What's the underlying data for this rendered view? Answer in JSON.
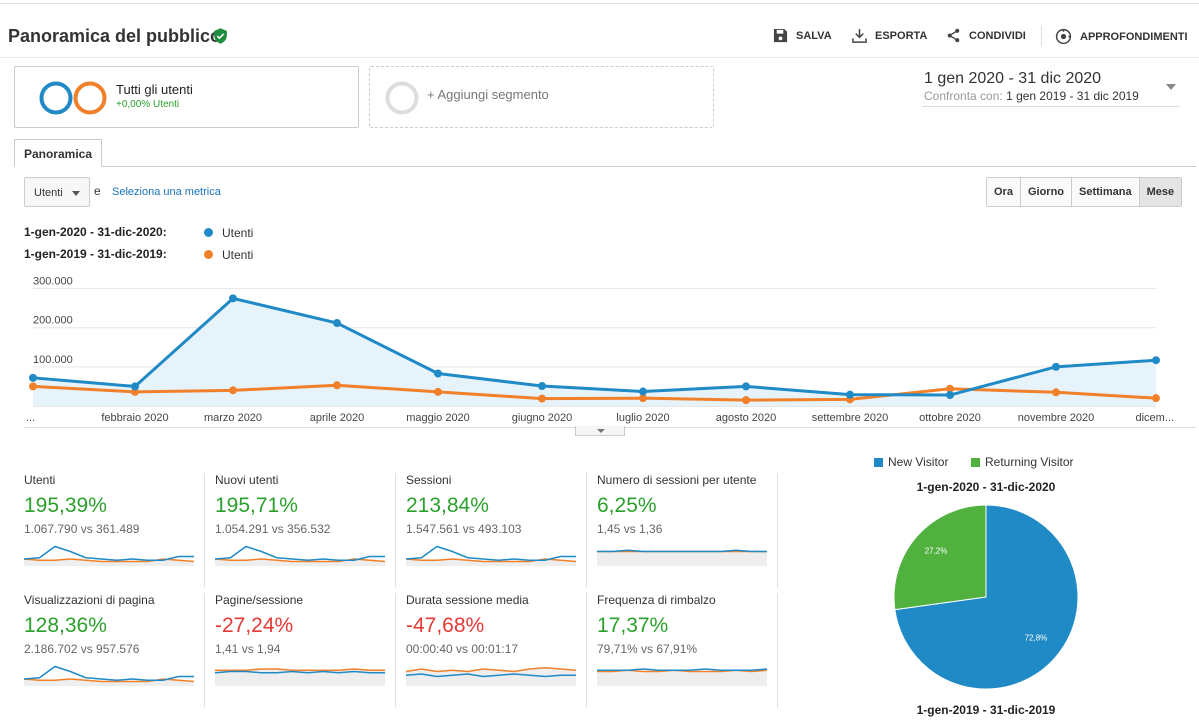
{
  "header": {
    "title": "Panoramica del pubblico",
    "save": "SALVA",
    "export": "ESPORTA",
    "share": "CONDIVIDI",
    "insights": "APPROFONDIMENTI"
  },
  "segments": {
    "all_users_label": "Tutti gli utenti",
    "all_users_sub": "+0,00% Utenti",
    "add_segment": "+ Aggiungi segmento"
  },
  "date_range": {
    "main": "1 gen 2020 - 31 dic 2020",
    "compare_label": "Confronta con:",
    "compare_value": "1 gen 2019 - 31 dic 2019"
  },
  "tab": "Panoramica",
  "controls": {
    "metric_select": "Utenti",
    "and": "e",
    "select_metric_link": "Seleziona una metrica",
    "granularity": [
      "Ora",
      "Giorno",
      "Settimana",
      "Mese"
    ],
    "granularity_selected": "Mese"
  },
  "legend": {
    "row1_period": "1-gen-2020 - 31-dic-2020:",
    "row1_metric": "Utenti",
    "row2_period": "1-gen-2019 - 31-dic-2019:",
    "row2_metric": "Utenti"
  },
  "colors": {
    "current": "#1f8ac6",
    "previous": "#f0802a",
    "green": "#2ca02c",
    "red": "#e53935",
    "returning": "#50b13f"
  },
  "chart_data": {
    "type": "line",
    "x": [
      "...",
      "febbraio 2020",
      "marzo 2020",
      "aprile 2020",
      "maggio 2020",
      "giugno 2020",
      "luglio 2020",
      "agosto 2020",
      "settembre 2020",
      "ottobre 2020",
      "novembre 2020",
      "dicem..."
    ],
    "yticks": [
      "100.000",
      "200.000",
      "300.000"
    ],
    "ylim": [
      0,
      350000
    ],
    "series": [
      {
        "name": "1-gen-2020 - 31-dic-2020",
        "values": [
          72000,
          50000,
          275000,
          212000,
          83000,
          51000,
          37000,
          50000,
          29000,
          28000,
          100000,
          117000
        ]
      },
      {
        "name": "1-gen-2019 - 31-dic-2019",
        "values": [
          50000,
          36000,
          40000,
          53000,
          36000,
          19000,
          20000,
          15000,
          17000,
          44000,
          35000,
          20000
        ]
      }
    ]
  },
  "kpis": [
    {
      "name": "Utenti",
      "pct": "195,39%",
      "cmp": "1.067.790 vs 361.489",
      "trend": "up",
      "cur": [
        4,
        5,
        14,
        10,
        5,
        4,
        3,
        4,
        3,
        3,
        6,
        6
      ],
      "prev": [
        4,
        3,
        3,
        4,
        3,
        2,
        2,
        2,
        2,
        4,
        3,
        2
      ]
    },
    {
      "name": "Nuovi utenti",
      "pct": "195,71%",
      "cmp": "1.054.291 vs 356.532",
      "trend": "up",
      "cur": [
        4,
        5,
        14,
        10,
        5,
        4,
        3,
        4,
        3,
        3,
        6,
        6
      ],
      "prev": [
        4,
        3,
        3,
        4,
        3,
        2,
        2,
        2,
        2,
        4,
        3,
        2
      ]
    },
    {
      "name": "Sessioni",
      "pct": "213,84%",
      "cmp": "1.547.561 vs 493.103",
      "trend": "up",
      "cur": [
        4,
        5,
        14,
        10,
        5,
        4,
        3,
        4,
        3,
        3,
        6,
        6
      ],
      "prev": [
        4,
        3,
        3,
        4,
        3,
        2,
        2,
        2,
        2,
        4,
        3,
        2
      ]
    },
    {
      "name": "Numero di sessioni per utente",
      "pct": "6,25%",
      "cmp": "1,45 vs 1,36",
      "trend": "up",
      "cur": [
        10,
        10,
        11,
        10,
        10,
        10,
        10,
        10,
        10,
        11,
        10,
        10
      ],
      "prev": [
        10,
        10,
        10,
        10,
        10,
        10,
        10,
        10,
        10,
        10,
        10,
        10
      ]
    },
    {
      "name": "Visualizzazioni di pagina",
      "pct": "128,36%",
      "cmp": "2.186.702 vs 957.576",
      "trend": "up",
      "cur": [
        4,
        5,
        14,
        10,
        5,
        4,
        3,
        4,
        3,
        3,
        6,
        6
      ],
      "prev": [
        4,
        3,
        3,
        4,
        3,
        2,
        2,
        2,
        2,
        4,
        3,
        2
      ]
    },
    {
      "name": "Pagine/sessione",
      "pct": "-27,24%",
      "cmp": "1,41 vs 1,94",
      "trend": "down",
      "cur": [
        9,
        10,
        10,
        9,
        9,
        10,
        9,
        10,
        9,
        10,
        9,
        9
      ],
      "prev": [
        11,
        11,
        11,
        12,
        12,
        11,
        11,
        11,
        11,
        12,
        11,
        11
      ]
    },
    {
      "name": "Durata sessione media",
      "pct": "-47,68%",
      "cmp": "00:00:40 vs 00:01:17",
      "trend": "down",
      "cur": [
        7,
        8,
        6,
        7,
        8,
        6,
        7,
        8,
        7,
        6,
        7,
        7
      ],
      "prev": [
        10,
        12,
        10,
        11,
        10,
        12,
        11,
        10,
        12,
        13,
        12,
        11
      ]
    },
    {
      "name": "Frequenza di rimbalzo",
      "pct": "17,37%",
      "cmp": "79,71% vs 67,91%",
      "trend": "up",
      "cur": [
        11,
        11,
        11,
        12,
        11,
        11,
        11,
        12,
        11,
        11,
        11,
        12
      ],
      "prev": [
        10,
        10,
        11,
        10,
        10,
        11,
        10,
        10,
        10,
        11,
        10,
        11
      ]
    }
  ],
  "pie": {
    "legend_new": "New Visitor",
    "legend_returning": "Returning Visitor",
    "title_top": "1-gen-2020 - 31-dic-2020",
    "title_bottom": "1-gen-2019 - 31-dic-2019",
    "slices": [
      {
        "name": "New Visitor",
        "value": 72.8,
        "label": "72,8%"
      },
      {
        "name": "Returning Visitor",
        "value": 27.2,
        "label": "27,2%"
      }
    ]
  }
}
